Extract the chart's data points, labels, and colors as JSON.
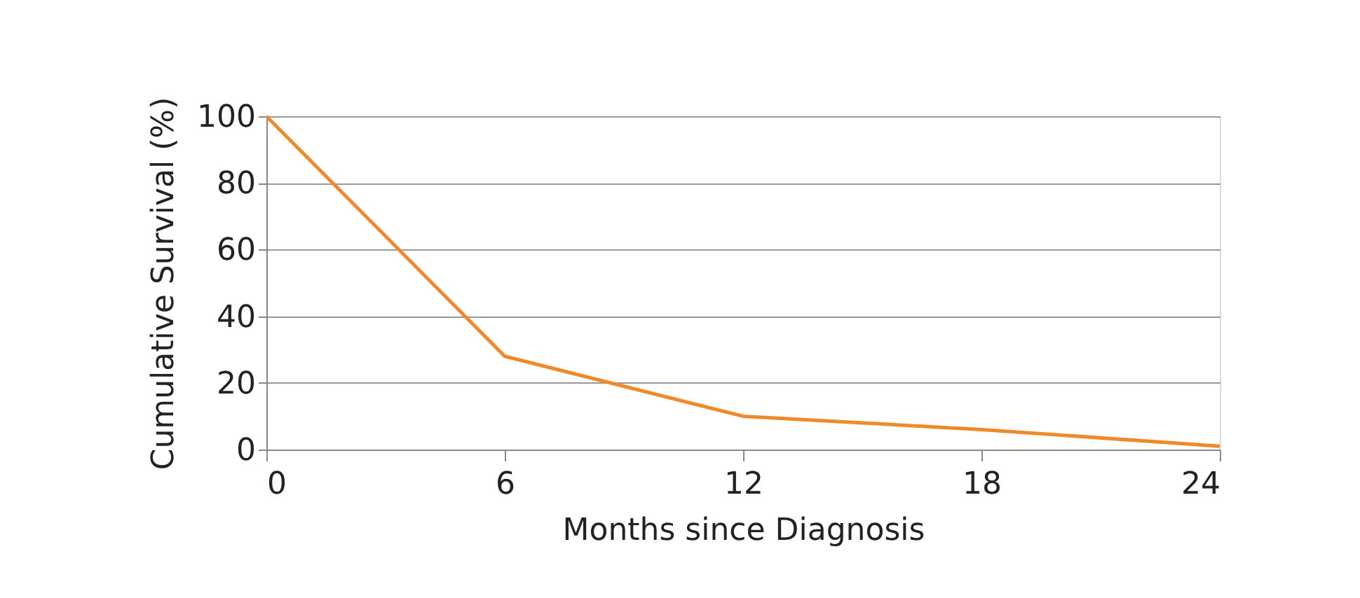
{
  "chart_data": {
    "type": "line",
    "xlabel": "Months since Diagnosis",
    "ylabel": "Cumulative Survival (%)",
    "x": [
      0,
      6,
      12,
      18,
      24
    ],
    "series": [
      {
        "color": "#f0892a",
        "values": [
          100,
          28,
          10,
          6,
          1
        ]
      }
    ],
    "xlim": [
      0,
      24
    ],
    "xticks": [
      0,
      6,
      12,
      18,
      24
    ],
    "ylim": [
      0,
      100
    ],
    "yticks": [
      0,
      20,
      40,
      60,
      80,
      100
    ],
    "grid": "y",
    "marker": "none",
    "line_style": "solid"
  }
}
